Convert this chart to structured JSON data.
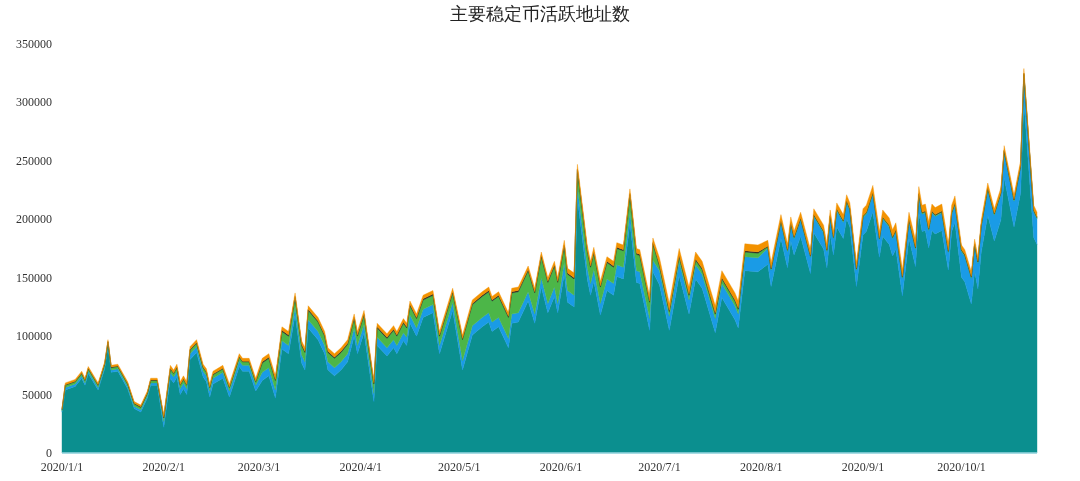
{
  "chart_data": {
    "type": "area",
    "stacked": true,
    "title": "主要稳定币活跃地址数",
    "x": [
      "2020-01-01",
      "2020-01-02",
      "2020-01-05",
      "2020-01-07",
      "2020-01-08",
      "2020-01-09",
      "2020-01-12",
      "2020-01-14",
      "2020-01-15",
      "2020-01-16",
      "2020-01-18",
      "2020-01-21",
      "2020-01-23",
      "2020-01-25",
      "2020-01-27",
      "2020-01-28",
      "2020-01-30",
      "2020-02-01",
      "2020-02-03",
      "2020-02-04",
      "2020-02-05",
      "2020-02-06",
      "2020-02-07",
      "2020-02-08",
      "2020-02-09",
      "2020-02-11",
      "2020-02-13",
      "2020-02-14",
      "2020-02-15",
      "2020-02-16",
      "2020-02-19",
      "2020-02-21",
      "2020-02-24",
      "2020-02-25",
      "2020-02-27",
      "2020-02-29",
      "2020-03-02",
      "2020-03-04",
      "2020-03-06",
      "2020-03-08",
      "2020-03-10",
      "2020-03-12",
      "2020-03-14",
      "2020-03-15",
      "2020-03-16",
      "2020-03-19",
      "2020-03-21",
      "2020-03-22",
      "2020-03-24",
      "2020-03-26",
      "2020-03-28",
      "2020-03-30",
      "2020-03-31",
      "2020-04-02",
      "2020-04-05",
      "2020-04-06",
      "2020-04-09",
      "2020-04-11",
      "2020-04-12",
      "2020-04-14",
      "2020-04-15",
      "2020-04-16",
      "2020-04-18",
      "2020-04-20",
      "2020-04-23",
      "2020-04-25",
      "2020-04-29",
      "2020-05-02",
      "2020-05-05",
      "2020-05-08",
      "2020-05-10",
      "2020-05-11",
      "2020-05-13",
      "2020-05-16",
      "2020-05-17",
      "2020-05-19",
      "2020-05-22",
      "2020-05-24",
      "2020-05-26",
      "2020-05-28",
      "2020-05-30",
      "2020-05-31",
      "2020-06-02",
      "2020-06-03",
      "2020-06-05",
      "2020-06-06",
      "2020-06-09",
      "2020-06-10",
      "2020-06-11",
      "2020-06-13",
      "2020-06-15",
      "2020-06-17",
      "2020-06-18",
      "2020-06-20",
      "2020-06-22",
      "2020-06-24",
      "2020-06-25",
      "2020-06-28",
      "2020-06-29",
      "2020-07-01",
      "2020-07-04",
      "2020-07-07",
      "2020-07-10",
      "2020-07-12",
      "2020-07-14",
      "2020-07-18",
      "2020-07-20",
      "2020-07-24",
      "2020-07-25",
      "2020-07-27",
      "2020-07-31",
      "2020-08-03",
      "2020-08-04",
      "2020-08-07",
      "2020-08-09",
      "2020-08-10",
      "2020-08-11",
      "2020-08-13",
      "2020-08-16",
      "2020-08-17",
      "2020-08-20",
      "2020-08-21",
      "2020-08-22",
      "2020-08-23",
      "2020-08-24",
      "2020-08-26",
      "2020-08-27",
      "2020-08-28",
      "2020-08-30",
      "2020-09-01",
      "2020-09-02",
      "2020-09-04",
      "2020-09-06",
      "2020-09-07",
      "2020-09-09",
      "2020-09-10",
      "2020-09-11",
      "2020-09-13",
      "2020-09-15",
      "2020-09-17",
      "2020-09-18",
      "2020-09-19",
      "2020-09-20",
      "2020-09-21",
      "2020-09-22",
      "2020-09-23",
      "2020-09-25",
      "2020-09-27",
      "2020-09-28",
      "2020-09-29",
      "2020-10-01",
      "2020-10-02",
      "2020-10-04",
      "2020-10-05",
      "2020-10-06",
      "2020-10-07",
      "2020-10-09",
      "2020-10-11",
      "2020-10-13",
      "2020-10-14",
      "2020-10-17",
      "2020-10-19",
      "2020-10-20",
      "2020-10-23",
      "2020-10-24"
    ],
    "xlim": [
      "2020-01-01",
      "2020-10-24"
    ],
    "xticks": [
      {
        "value": "2020-01-01",
        "label": "2020/1/1"
      },
      {
        "value": "2020-02-01",
        "label": "2020/2/1"
      },
      {
        "value": "2020-03-01",
        "label": "2020/3/1"
      },
      {
        "value": "2020-04-01",
        "label": "2020/4/1"
      },
      {
        "value": "2020-05-01",
        "label": "2020/5/1"
      },
      {
        "value": "2020-06-01",
        "label": "2020/6/1"
      },
      {
        "value": "2020-07-01",
        "label": "2020/7/1"
      },
      {
        "value": "2020-08-01",
        "label": "2020/8/1"
      },
      {
        "value": "2020-09-01",
        "label": "2020/9/1"
      },
      {
        "value": "2020-10-01",
        "label": "2020/10/1"
      }
    ],
    "ylim": [
      0,
      350000
    ],
    "yticks": [
      0,
      50000,
      100000,
      150000,
      200000,
      250000,
      300000,
      350000
    ],
    "series": [
      {
        "color": "#0b8f8f",
        "values": [
          35000,
          54000,
          57000,
          64000,
          58000,
          68000,
          54000,
          72000,
          91000,
          69000,
          70000,
          55000,
          38000,
          35000,
          47000,
          58000,
          58000,
          22000,
          64000,
          60000,
          65000,
          50000,
          55000,
          50000,
          80000,
          86000,
          65000,
          61000,
          48000,
          59000,
          64000,
          48000,
          74000,
          70000,
          70000,
          53000,
          62000,
          66000,
          47000,
          89000,
          85000,
          118000,
          77000,
          71000,
          107000,
          97000,
          85000,
          71000,
          66000,
          71000,
          78000,
          100000,
          85000,
          103000,
          44000,
          92000,
          83000,
          90000,
          85000,
          96000,
          92000,
          111000,
          100000,
          116000,
          120000,
          85000,
          122000,
          71000,
          101000,
          108000,
          112000,
          104000,
          108000,
          90000,
          111000,
          112000,
          130000,
          111000,
          142000,
          120000,
          134000,
          120000,
          153000,
          129000,
          125000,
          218000,
          149000,
          135000,
          147000,
          118000,
          139000,
          135000,
          151000,
          149000,
          197000,
          146000,
          145000,
          105000,
          155000,
          144000,
          105000,
          152000,
          119000,
          149000,
          141000,
          103000,
          133000,
          114000,
          107000,
          156000,
          155000,
          161500,
          142500,
          183500,
          158500,
          181500,
          169500,
          185500,
          153500,
          188500,
          174500,
          158500,
          187500,
          169500,
          193500,
          183500,
          200500,
          193500,
          142500,
          186500,
          189500,
          206500,
          167500,
          185500,
          178500,
          168500,
          174500,
          134500,
          183500,
          159500,
          205500,
          189500,
          190500,
          175500,
          190500,
          187500,
          190500,
          156500,
          189500,
          197500,
          150500,
          146500,
          127500,
          155500,
          140500,
          171500,
          203500,
          181500,
          199500,
          235500,
          193500,
          222500,
          301500,
          184500,
          178500
        ]
      },
      {
        "color": "#1a9be6",
        "values": [
          1000,
          2000,
          2000,
          2000,
          2000,
          2000,
          2000,
          2000,
          2000,
          2000,
          2000,
          2000,
          2000,
          2000,
          2000,
          2000,
          2000,
          5000,
          5000,
          5000,
          5000,
          5000,
          5000,
          5000,
          5000,
          5000,
          5000,
          5000,
          5000,
          5000,
          5000,
          5000,
          5000,
          5000,
          5000,
          5000,
          7000,
          7000,
          7000,
          7000,
          7000,
          7000,
          7000,
          7000,
          7000,
          7000,
          7000,
          7000,
          7000,
          7000,
          7000,
          7000,
          7000,
          7000,
          7000,
          7000,
          7000,
          7000,
          7000,
          7000,
          7000,
          7000,
          7000,
          7000,
          7000,
          7000,
          7000,
          8000,
          8000,
          8000,
          8000,
          8000,
          8000,
          8000,
          8000,
          8000,
          8000,
          8000,
          8000,
          8000,
          8000,
          8000,
          10000,
          10000,
          10000,
          10000,
          10000,
          10000,
          10000,
          10000,
          10000,
          10000,
          10000,
          10000,
          10000,
          10000,
          10000,
          10000,
          10000,
          12000,
          12000,
          12000,
          12000,
          12000,
          12000,
          12000,
          12000,
          12000,
          12000,
          12000,
          12000,
          14000,
          14000,
          14000,
          14000,
          14000,
          14000,
          14000,
          14000,
          14000,
          14000,
          14000,
          14000,
          14000,
          14000,
          14000,
          14000,
          14000,
          14000,
          15000,
          15000,
          15000,
          15000,
          15000,
          15000,
          15000,
          15000,
          15000,
          15000,
          15000,
          15000,
          15000,
          15000,
          15000,
          15000,
          15000,
          15000,
          15000,
          15000,
          15000,
          22000,
          22000,
          22000,
          22000,
          22000,
          22000,
          22000,
          22000,
          22000,
          22000,
          22000,
          22000,
          22000,
          22000,
          22000
        ]
      },
      {
        "color": "#4cb648",
        "values": [
          1000,
          2000,
          2000,
          2000,
          2000,
          2000,
          2000,
          2000,
          2000,
          2000,
          2000,
          2000,
          2000,
          2000,
          2000,
          2000,
          2000,
          3000,
          3000,
          3000,
          3000,
          3000,
          3000,
          3000,
          3000,
          3000,
          3000,
          3000,
          3000,
          3000,
          3000,
          3000,
          3000,
          3000,
          3000,
          3000,
          8000,
          8000,
          8000,
          8000,
          8000,
          8000,
          8000,
          8000,
          8000,
          8000,
          8000,
          8000,
          8000,
          8000,
          8000,
          8000,
          8000,
          8000,
          8000,
          8000,
          8000,
          8000,
          8000,
          8000,
          8000,
          8000,
          8000,
          8000,
          8000,
          8000,
          8000,
          18000,
          18000,
          18000,
          18000,
          18000,
          18000,
          18000,
          18000,
          18000,
          18000,
          18000,
          18000,
          18000,
          18000,
          18000,
          14000,
          14000,
          14000,
          14000,
          14000,
          14000,
          14000,
          14000,
          14000,
          14000,
          14000,
          14000,
          14000,
          14000,
          14000,
          14000,
          14000,
          4000,
          4000,
          4000,
          4000,
          4000,
          4000,
          4000,
          4000,
          4000,
          4000,
          4000,
          4000,
          1000,
          1000,
          1000,
          1000,
          1000,
          1000,
          1000,
          1000,
          1000,
          1000,
          1000,
          1000,
          1000,
          1000,
          1000,
          1000,
          1000,
          1000,
          1000,
          1000,
          1000,
          1000,
          1000,
          1000,
          1000,
          1000,
          1000,
          1000,
          1000,
          1000,
          1000,
          1000,
          1000,
          1000,
          1000,
          1000,
          1000,
          1000,
          1000,
          1000,
          1000,
          1000,
          1000,
          1000,
          1000,
          1000,
          1000,
          1000,
          1000,
          1000,
          1000,
          1000,
          1000,
          1000
        ]
      },
      {
        "color": "#222222",
        "values": [
          500,
          500,
          500,
          500,
          500,
          500,
          500,
          500,
          500,
          500,
          500,
          500,
          500,
          500,
          500,
          500,
          500,
          500,
          500,
          500,
          500,
          500,
          500,
          500,
          500,
          500,
          500,
          500,
          500,
          500,
          500,
          500,
          500,
          500,
          500,
          500,
          1000,
          1000,
          1000,
          1000,
          1000,
          1000,
          1000,
          1000,
          1000,
          1000,
          1000,
          1000,
          1000,
          1000,
          1000,
          1000,
          1000,
          1000,
          1000,
          1000,
          1000,
          1000,
          1000,
          1000,
          1000,
          1000,
          1000,
          1000,
          1000,
          1000,
          1000,
          1000,
          1000,
          1000,
          1000,
          1000,
          1000,
          1000,
          1000,
          1000,
          1000,
          1000,
          1000,
          1000,
          1000,
          1000,
          1000,
          1000,
          1000,
          1000,
          1000,
          1000,
          1000,
          1000,
          1000,
          1000,
          1000,
          1000,
          1000,
          1000,
          1000,
          1000,
          1000,
          1000,
          1000,
          1000,
          1000,
          1000,
          1000,
          1000,
          1000,
          1000,
          1000,
          1000,
          1000,
          500,
          500,
          500,
          500,
          500,
          500,
          500,
          500,
          500,
          500,
          500,
          500,
          500,
          500,
          500,
          500,
          500,
          500,
          500,
          500,
          500,
          500,
          500,
          500,
          500,
          500,
          500,
          500,
          500,
          500,
          500,
          500,
          500,
          500,
          500,
          500,
          500,
          500,
          500,
          500,
          500,
          500,
          500,
          500,
          500,
          500,
          500,
          500,
          500,
          500,
          500,
          500,
          500,
          500
        ]
      },
      {
        "color": "#f39200",
        "values": [
          500,
          1500,
          1500,
          1500,
          1500,
          1500,
          1500,
          1500,
          1500,
          1500,
          1500,
          1500,
          1500,
          1500,
          1500,
          1500,
          1500,
          2500,
          2500,
          2500,
          2500,
          2500,
          2500,
          2500,
          2500,
          2500,
          2500,
          2500,
          2500,
          2500,
          2500,
          2500,
          2500,
          2500,
          2500,
          2500,
          3000,
          3000,
          3000,
          3000,
          3000,
          3000,
          3000,
          3000,
          3000,
          3000,
          3000,
          3000,
          3000,
          3000,
          3000,
          3000,
          3000,
          3000,
          3000,
          3000,
          3000,
          3000,
          3000,
          3000,
          3000,
          3000,
          3000,
          3000,
          3000,
          3000,
          3000,
          3000,
          3000,
          3000,
          3000,
          3000,
          3000,
          3000,
          3000,
          3000,
          3000,
          3000,
          3000,
          3000,
          3000,
          3000,
          4000,
          4000,
          4000,
          4000,
          4000,
          4000,
          4000,
          4000,
          4000,
          4000,
          4000,
          4000,
          4000,
          4000,
          4000,
          4000,
          4000,
          6000,
          6000,
          6000,
          6000,
          6000,
          6000,
          6000,
          6000,
          6000,
          6000,
          6000,
          6000,
          5000,
          5000,
          5000,
          5000,
          5000,
          5000,
          5000,
          5000,
          5000,
          5000,
          5000,
          5000,
          5000,
          5000,
          5000,
          5000,
          5000,
          5000,
          6000,
          6000,
          6000,
          6000,
          6000,
          6000,
          6000,
          6000,
          6000,
          6000,
          6000,
          6000,
          6000,
          6000,
          6000,
          6000,
          6000,
          6000,
          6000,
          6000,
          6000,
          4000,
          4000,
          4000,
          4000,
          4000,
          4000,
          4000,
          4000,
          4000,
          4000,
          4000,
          4000,
          4000,
          4000,
          4000
        ]
      }
    ]
  }
}
